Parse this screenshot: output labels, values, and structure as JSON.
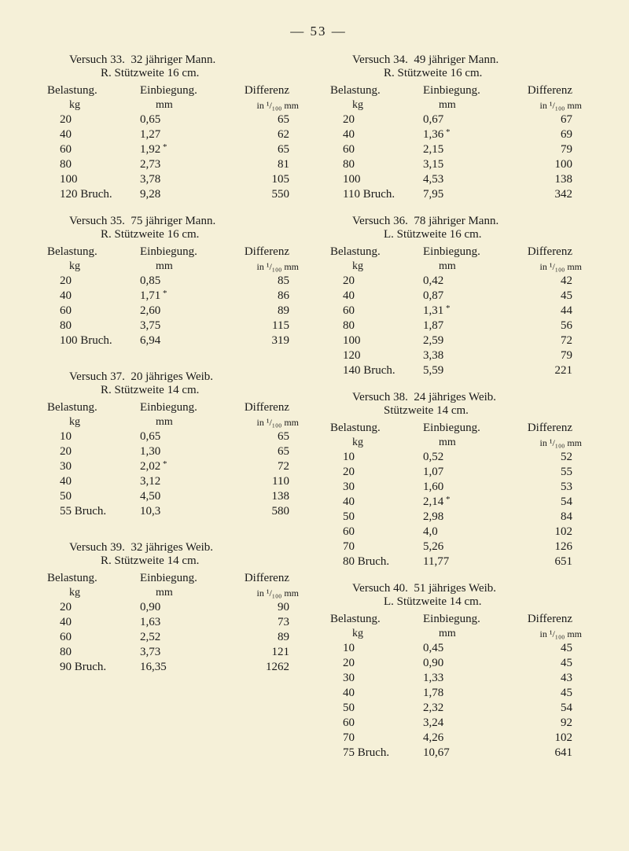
{
  "page_number_label": "— 53 —",
  "header_labels": {
    "belastung": "Belastung.",
    "einbiegung": "Einbiegung.",
    "differenz": "Differenz"
  },
  "unit_labels": {
    "kg": "kg",
    "mm": "mm",
    "diff": "in ¹/₁₀₀ mm"
  },
  "left_trials": [
    {
      "title": "Versuch 33.  32 jähriger Mann.",
      "sub": "R. Stützweite 16 cm.",
      "rows": [
        {
          "b": "20",
          "e": "0,65",
          "d": "65",
          "star": false
        },
        {
          "b": "40",
          "e": "1,27",
          "d": "62",
          "star": false
        },
        {
          "b": "60",
          "e": "1,92",
          "d": "65",
          "star": true
        },
        {
          "b": "80",
          "e": "2,73",
          "d": "81",
          "star": false
        },
        {
          "b": "100",
          "e": "3,78",
          "d": "105",
          "star": false
        },
        {
          "b": "120 Bruch.",
          "e": "9,28",
          "d": "550",
          "star": false
        }
      ]
    },
    {
      "title": "Versuch 35.  75 jähriger Mann.",
      "sub": "R. Stützweite 16 cm.",
      "rows": [
        {
          "b": "20",
          "e": "0,85",
          "d": "85",
          "star": false
        },
        {
          "b": "40",
          "e": "1,71",
          "d": "86",
          "star": true
        },
        {
          "b": "60",
          "e": "2,60",
          "d": "89",
          "star": false
        },
        {
          "b": "80",
          "e": "3,75",
          "d": "115",
          "star": false
        },
        {
          "b": "100 Bruch.",
          "e": "6,94",
          "d": "319",
          "star": false
        }
      ]
    },
    {
      "title": "Versuch 37.  20 jähriges Weib.",
      "sub": "R. Stützweite 14 cm.",
      "rows": [
        {
          "b": "10",
          "e": "0,65",
          "d": "65",
          "star": false
        },
        {
          "b": "20",
          "e": "1,30",
          "d": "65",
          "star": false
        },
        {
          "b": "30",
          "e": "2,02",
          "d": "72",
          "star": true
        },
        {
          "b": "40",
          "e": "3,12",
          "d": "110",
          "star": false
        },
        {
          "b": "50",
          "e": "4,50",
          "d": "138",
          "star": false
        },
        {
          "b": "55 Bruch.",
          "e": "10,3",
          "d": "580",
          "star": false
        }
      ]
    },
    {
      "title": "Versuch 39.  32 jähriges Weib.",
      "sub": "R. Stützweite 14 cm.",
      "rows": [
        {
          "b": "20",
          "e": "0,90",
          "d": "90",
          "star": false
        },
        {
          "b": "40",
          "e": "1,63",
          "d": "73",
          "star": false
        },
        {
          "b": "60",
          "e": "2,52",
          "d": "89",
          "star": false
        },
        {
          "b": "80",
          "e": "3,73",
          "d": "121",
          "star": false
        },
        {
          "b": "90 Bruch.",
          "e": "16,35",
          "d": "1262",
          "star": false
        }
      ]
    }
  ],
  "right_trials": [
    {
      "title": "Versuch 34.  49 jähriger Mann.",
      "sub": "R. Stützweite 16 cm.",
      "rows": [
        {
          "b": "20",
          "e": "0,67",
          "d": "67",
          "star": false
        },
        {
          "b": "40",
          "e": "1,36",
          "d": "69",
          "star": true
        },
        {
          "b": "60",
          "e": "2,15",
          "d": "79",
          "star": false
        },
        {
          "b": "80",
          "e": "3,15",
          "d": "100",
          "star": false
        },
        {
          "b": "100",
          "e": "4,53",
          "d": "138",
          "star": false
        },
        {
          "b": "110 Bruch.",
          "e": "7,95",
          "d": "342",
          "star": false
        }
      ]
    },
    {
      "title": "Versuch 36.  78 jähriger Mann.",
      "sub": "L. Stützweite 16 cm.",
      "rows": [
        {
          "b": "20",
          "e": "0,42",
          "d": "42",
          "star": false
        },
        {
          "b": "40",
          "e": "0,87",
          "d": "45",
          "star": false
        },
        {
          "b": "60",
          "e": "1,31",
          "d": "44",
          "star": true
        },
        {
          "b": "80",
          "e": "1,87",
          "d": "56",
          "star": false
        },
        {
          "b": "100",
          "e": "2,59",
          "d": "72",
          "star": false
        },
        {
          "b": "120",
          "e": "3,38",
          "d": "79",
          "star": false
        },
        {
          "b": "140 Bruch.",
          "e": "5,59",
          "d": "221",
          "star": false
        }
      ]
    },
    {
      "title": "Versuch 38.  24 jähriges Weib.",
      "sub": "Stützweite 14 cm.",
      "rows": [
        {
          "b": "10",
          "e": "0,52",
          "d": "52",
          "star": false
        },
        {
          "b": "20",
          "e": "1,07",
          "d": "55",
          "star": false
        },
        {
          "b": "30",
          "e": "1,60",
          "d": "53",
          "star": false
        },
        {
          "b": "40",
          "e": "2,14",
          "d": "54",
          "star": true
        },
        {
          "b": "50",
          "e": "2,98",
          "d": "84",
          "star": false
        },
        {
          "b": "60",
          "e": "4,0",
          "d": "102",
          "star": false
        },
        {
          "b": "70",
          "e": "5,26",
          "d": "126",
          "star": false
        },
        {
          "b": "80 Bruch.",
          "e": "11,77",
          "d": "651",
          "star": false
        }
      ]
    },
    {
      "title": "Versuch 40.  51 jähriges Weib.",
      "sub": "L. Stützweite 14 cm.",
      "rows": [
        {
          "b": "10",
          "e": "0,45",
          "d": "45",
          "star": false
        },
        {
          "b": "20",
          "e": "0,90",
          "d": "45",
          "star": false
        },
        {
          "b": "30",
          "e": "1,33",
          "d": "43",
          "star": false
        },
        {
          "b": "40",
          "e": "1,78",
          "d": "45",
          "star": false
        },
        {
          "b": "50",
          "e": "2,32",
          "d": "54",
          "star": false
        },
        {
          "b": "60",
          "e": "3,24",
          "d": "92",
          "star": false
        },
        {
          "b": "70",
          "e": "4,26",
          "d": "102",
          "star": false
        },
        {
          "b": "75 Bruch.",
          "e": "10,67",
          "d": "641",
          "star": false
        }
      ]
    }
  ]
}
